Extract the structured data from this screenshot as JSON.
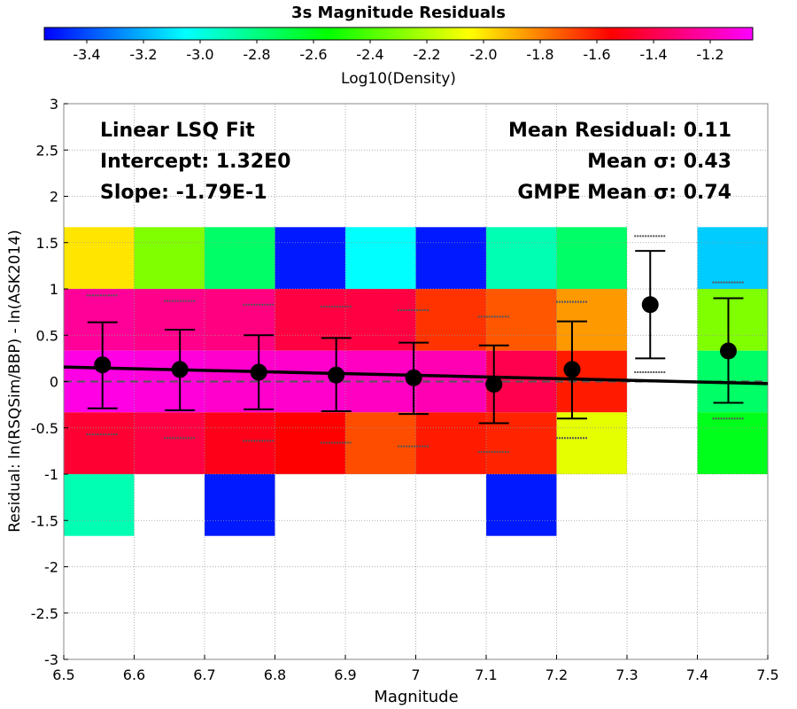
{
  "chart_data": {
    "type": "heatmap",
    "title": "3s Magnitude Residuals",
    "xlabel": "Magnitude",
    "ylabel": "Residual: ln(RSQSim/BBP) - ln(ASK2014)",
    "xlim": [
      6.5,
      7.5
    ],
    "ylim": [
      -3,
      3
    ],
    "x_ticks": [
      "6.5",
      "6.6",
      "6.7",
      "6.8",
      "6.9",
      "7",
      "7.1",
      "7.2",
      "7.3",
      "7.4",
      "7.5"
    ],
    "y_ticks": [
      "-3",
      "-2.5",
      "-2",
      "-1.5",
      "-1",
      "-0.5",
      "0",
      "0.5",
      "1",
      "1.5",
      "2",
      "2.5",
      "3"
    ],
    "grid": true,
    "colorbar": {
      "label": "Log10(Density)",
      "min": -3.55,
      "max": -1.05,
      "ticks": [
        "-3.4",
        "-3.2",
        "-3.0",
        "-2.8",
        "-2.6",
        "-2.4",
        "-2.2",
        "-2.0",
        "-1.8",
        "-1.6",
        "-1.4",
        "-1.2"
      ],
      "tick_values": [
        -3.4,
        -3.2,
        -3.0,
        -2.8,
        -2.6,
        -2.4,
        -2.2,
        -2.0,
        -1.8,
        -1.6,
        -1.4,
        -1.2
      ]
    },
    "row_edges": [
      1.667,
      1.0,
      0.333,
      -0.333,
      -1.0,
      -1.667
    ],
    "heatmap": [
      {
        "x0": 6.5,
        "x1": 6.6,
        "rows": [
          -2.0,
          -1.25,
          -1.1,
          -1.45,
          -2.9
        ]
      },
      {
        "x0": 6.6,
        "x1": 6.7,
        "rows": [
          -2.3,
          -1.28,
          -1.12,
          -1.42,
          null
        ]
      },
      {
        "x0": 6.7,
        "x1": 6.8,
        "rows": [
          -2.75,
          -1.3,
          -1.15,
          -1.5,
          -3.5
        ]
      },
      {
        "x0": 6.8,
        "x1": 6.9,
        "rows": [
          -3.5,
          -1.42,
          -1.15,
          -1.55,
          null
        ]
      },
      {
        "x0": 6.9,
        "x1": 7.0,
        "rows": [
          -3.05,
          -1.42,
          -1.17,
          -1.7,
          null
        ]
      },
      {
        "x0": 7.0,
        "x1": 7.1,
        "rows": [
          -3.5,
          -1.65,
          -1.2,
          -1.6,
          null
        ]
      },
      {
        "x0": 7.1,
        "x1": 7.2,
        "rows": [
          -2.9,
          -1.72,
          -1.4,
          -1.62,
          -3.5
        ]
      },
      {
        "x0": 7.2,
        "x1": 7.3,
        "rows": [
          -2.75,
          -1.85,
          -1.6,
          -2.1,
          null
        ]
      },
      {
        "x0": 7.3,
        "x1": 7.4,
        "rows": [
          null,
          null,
          null,
          null,
          null
        ]
      },
      {
        "x0": 7.4,
        "x1": 7.5,
        "rows": [
          -3.15,
          -2.3,
          -2.75,
          -2.6,
          null
        ]
      }
    ],
    "series": [
      {
        "type": "errorbar",
        "x": [
          6.555,
          6.665,
          6.777,
          6.887,
          6.997,
          7.111,
          7.222,
          7.333,
          7.444
        ],
        "y": [
          0.18,
          0.13,
          0.1,
          0.07,
          0.04,
          -0.03,
          0.13,
          0.83,
          0.33
        ],
        "err_low": [
          -0.29,
          -0.31,
          -0.3,
          -0.32,
          -0.35,
          -0.45,
          -0.4,
          0.25,
          -0.23
        ],
        "err_high": [
          0.64,
          0.56,
          0.5,
          0.47,
          0.42,
          0.39,
          0.65,
          1.41,
          0.9
        ]
      },
      {
        "type": "gmpe-dashes",
        "x": [
          6.555,
          6.665,
          6.777,
          6.887,
          6.997,
          7.111,
          7.222,
          7.333,
          7.444
        ],
        "upper": [
          0.93,
          0.87,
          0.83,
          0.81,
          0.77,
          0.7,
          0.86,
          1.57,
          1.07
        ],
        "lower": [
          -0.57,
          -0.61,
          -0.64,
          -0.66,
          -0.7,
          -0.76,
          -0.61,
          0.1,
          -0.4
        ]
      }
    ],
    "fit_line": {
      "intercept": 1.32,
      "slope": -0.179
    },
    "zero_line": 0,
    "annotations_left": [
      "Linear LSQ Fit",
      "Intercept: 1.32E0",
      "Slope: -1.79E-1"
    ],
    "annotations_right": [
      "Mean Residual: 0.11",
      "Mean σ: 0.43",
      "GMPE Mean σ: 0.74"
    ]
  }
}
